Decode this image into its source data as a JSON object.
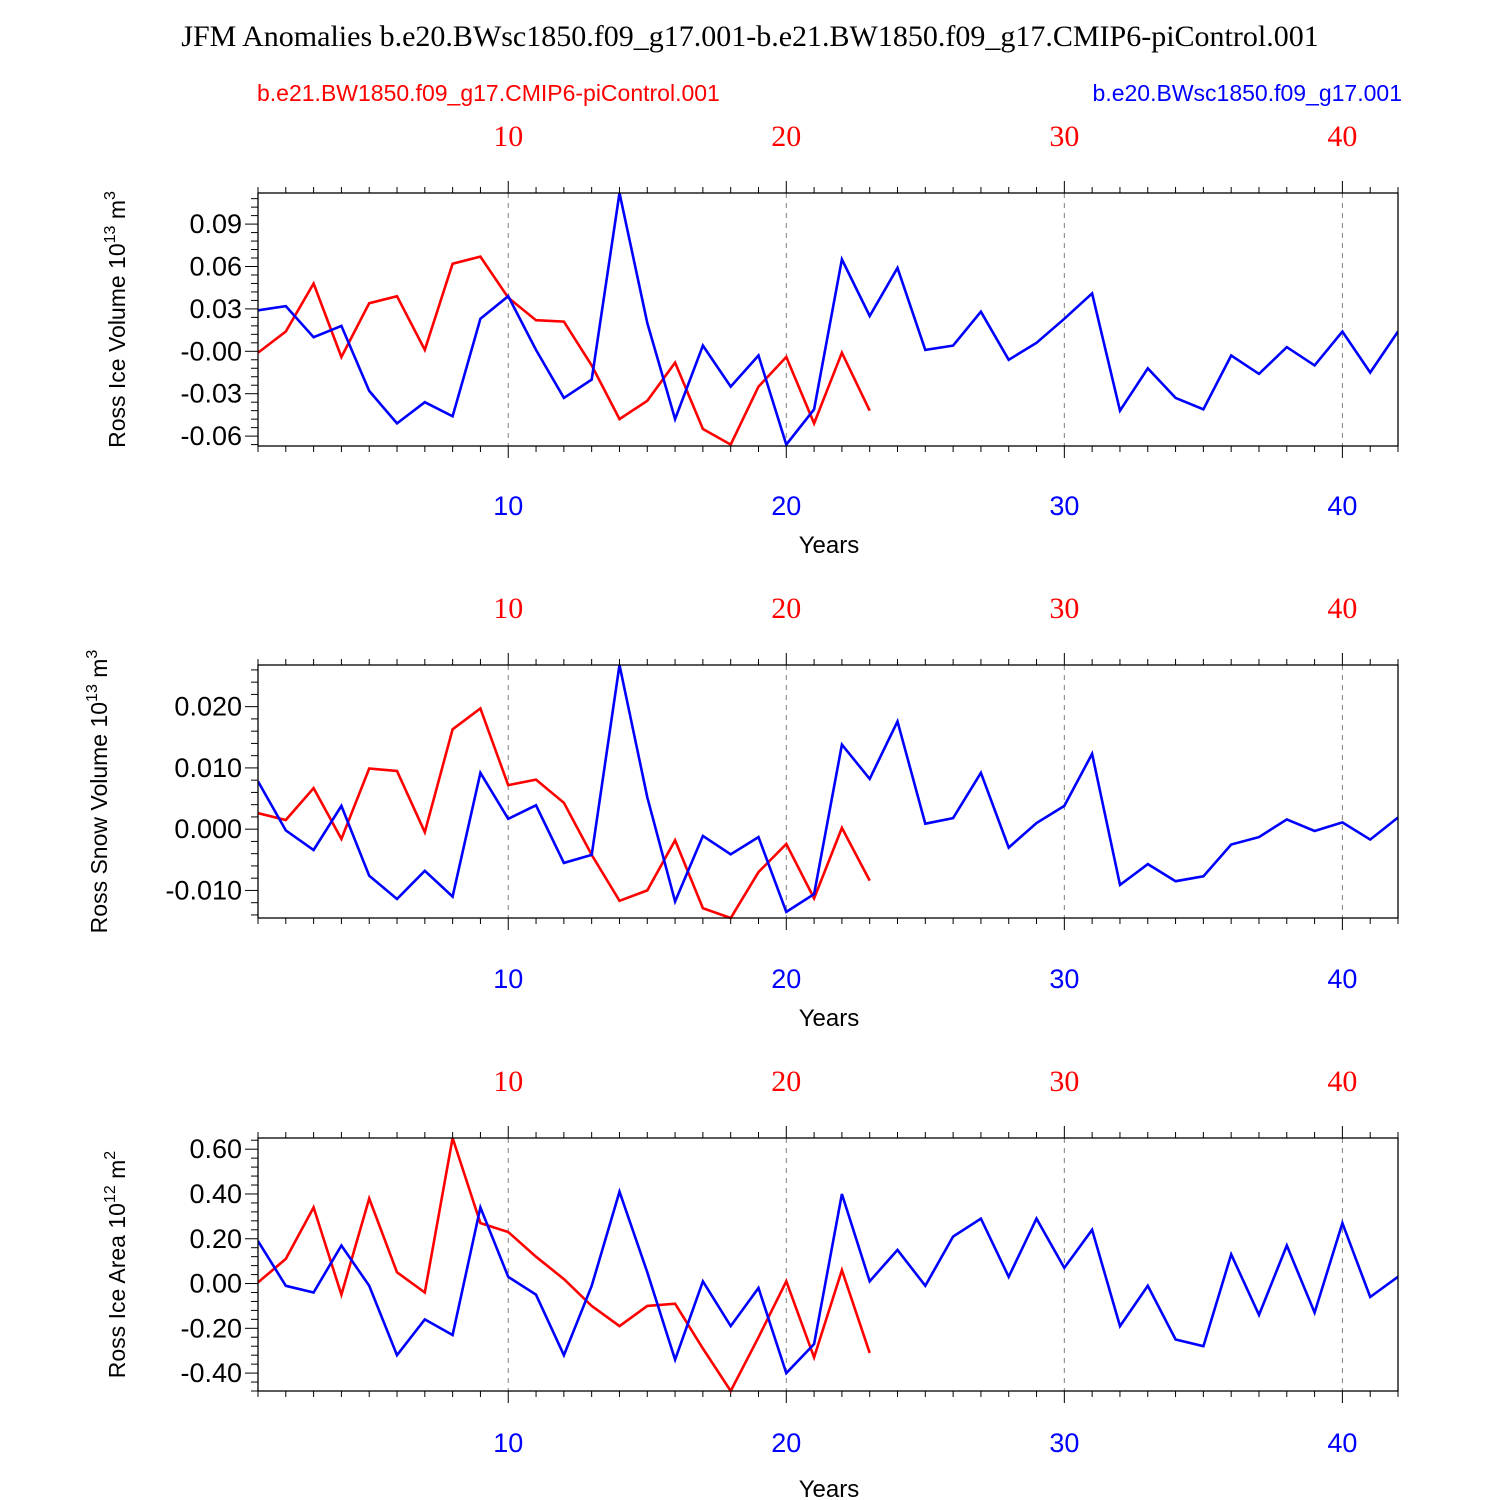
{
  "title": "JFM Anomalies b.e20.BWsc1850.f09_g17.001-b.e21.BW1850.f09_g17.CMIP6-piControl.001",
  "legend": {
    "left": "b.e21.BW1850.f09_g17.CMIP6-piControl.001",
    "right": "b.e20.BWsc1850.f09_g17.001"
  },
  "colors": {
    "red": "#ff0000",
    "blue": "#0000ff",
    "axis": "#000000",
    "grid": "#808080"
  },
  "chart_data": [
    {
      "type": "line",
      "title": "",
      "ylabel_main": "Ross Ice Volume 10",
      "ylabel_sup": "13",
      "ylabel_unit": " m",
      "ylabel_unit_sup": "3",
      "xlabel": "Years",
      "xlim": [
        1,
        42
      ],
      "ylim": [
        -0.067,
        0.112
      ],
      "yticks": [
        -0.06,
        -0.03,
        0.0,
        0.03,
        0.06,
        0.09
      ],
      "ytick_labels": [
        "-0.06",
        "-0.03",
        "-0.00",
        "0.03",
        "0.06",
        "0.09"
      ],
      "xticks": [
        10,
        20,
        30,
        40
      ],
      "xtick_labels": [
        "10",
        "20",
        "30",
        "40"
      ],
      "series": [
        {
          "name": "b.e21.BW1850.f09_g17.CMIP6-piControl.001",
          "color": "red",
          "x": [
            1,
            2,
            3,
            4,
            5,
            6,
            7,
            8,
            9,
            10,
            11,
            12,
            13,
            14,
            15,
            16,
            17,
            18,
            19,
            20,
            21,
            22,
            23
          ],
          "values": [
            -0.001,
            0.014,
            0.048,
            -0.004,
            0.034,
            0.039,
            0.001,
            0.062,
            0.067,
            0.038,
            0.022,
            0.021,
            -0.01,
            -0.048,
            -0.035,
            -0.008,
            -0.055,
            -0.066,
            -0.025,
            -0.004,
            -0.051,
            -0.001,
            -0.042
          ]
        },
        {
          "name": "b.e20.BWsc1850.f09_g17.001",
          "color": "blue",
          "x": [
            1,
            2,
            3,
            4,
            5,
            6,
            7,
            8,
            9,
            10,
            11,
            12,
            13,
            14,
            15,
            16,
            17,
            18,
            19,
            20,
            21,
            22,
            23,
            24,
            25,
            26,
            27,
            28,
            29,
            30,
            31,
            32,
            33,
            34,
            35,
            36,
            37,
            38,
            39,
            40,
            41,
            42
          ],
          "values": [
            0.029,
            0.032,
            0.01,
            0.018,
            -0.028,
            -0.051,
            -0.036,
            -0.046,
            0.023,
            0.039,
            0.001,
            -0.033,
            -0.02,
            0.112,
            0.02,
            -0.048,
            0.004,
            -0.025,
            -0.003,
            -0.066,
            -0.041,
            0.065,
            0.025,
            0.059,
            0.001,
            0.004,
            0.028,
            -0.006,
            0.006,
            0.023,
            0.041,
            -0.042,
            -0.012,
            -0.033,
            -0.041,
            -0.003,
            -0.016,
            0.003,
            -0.01,
            0.014,
            -0.015,
            0.014
          ]
        }
      ]
    },
    {
      "type": "line",
      "title": "",
      "ylabel_main": "Ross Snow Volume 10",
      "ylabel_sup": "13",
      "ylabel_unit": " m",
      "ylabel_unit_sup": "3",
      "xlabel": "Years",
      "xlim": [
        1,
        42
      ],
      "ylim": [
        -0.0145,
        0.0268
      ],
      "yticks": [
        -0.01,
        0.0,
        0.01,
        0.02
      ],
      "ytick_labels": [
        "-0.010",
        "0.000",
        "0.010",
        "0.020"
      ],
      "xticks": [
        10,
        20,
        30,
        40
      ],
      "xtick_labels": [
        "10",
        "20",
        "30",
        "40"
      ],
      "series": [
        {
          "name": "b.e21.BW1850.f09_g17.CMIP6-piControl.001",
          "color": "red",
          "x": [
            1,
            2,
            3,
            4,
            5,
            6,
            7,
            8,
            9,
            10,
            11,
            12,
            13,
            14,
            15,
            16,
            17,
            18,
            19,
            20,
            21,
            22,
            23
          ],
          "values": [
            0.0026,
            0.0015,
            0.0067,
            -0.0016,
            0.0099,
            0.0095,
            -0.0005,
            0.0163,
            0.0197,
            0.0072,
            0.0081,
            0.0043,
            -0.0042,
            -0.0117,
            -0.01,
            -0.0018,
            -0.0129,
            -0.0145,
            -0.007,
            -0.0024,
            -0.0113,
            0.0002,
            -0.0084
          ]
        },
        {
          "name": "b.e20.BWsc1850.f09_g17.001",
          "color": "blue",
          "x": [
            1,
            2,
            3,
            4,
            5,
            6,
            7,
            8,
            9,
            10,
            11,
            12,
            13,
            14,
            15,
            16,
            17,
            18,
            19,
            20,
            21,
            22,
            23,
            24,
            25,
            26,
            27,
            28,
            29,
            30,
            31,
            32,
            33,
            34,
            35,
            36,
            37,
            38,
            39,
            40,
            41,
            42
          ],
          "values": [
            0.0078,
            -0.0002,
            -0.0034,
            0.0038,
            -0.0076,
            -0.0114,
            -0.0068,
            -0.011,
            0.0092,
            0.0017,
            0.0039,
            -0.0055,
            -0.0042,
            0.0268,
            0.0052,
            -0.0118,
            -0.0011,
            -0.0041,
            -0.0013,
            -0.0135,
            -0.0106,
            0.0138,
            0.0082,
            0.0176,
            0.0009,
            0.0018,
            0.0092,
            -0.003,
            0.001,
            0.0038,
            0.0123,
            -0.0091,
            -0.0057,
            -0.0085,
            -0.0077,
            -0.0025,
            -0.0013,
            0.0016,
            -0.0003,
            0.0011,
            -0.0017,
            0.0019
          ]
        }
      ]
    },
    {
      "type": "line",
      "title": "",
      "ylabel_main": "Ross Ice Area 10",
      "ylabel_sup": "12",
      "ylabel_unit": " m",
      "ylabel_unit_sup": "2",
      "xlabel": "Years",
      "xlim": [
        1,
        42
      ],
      "ylim": [
        -0.48,
        0.65
      ],
      "yticks": [
        -0.4,
        -0.2,
        0.0,
        0.2,
        0.4,
        0.6
      ],
      "ytick_labels": [
        "-0.40",
        "-0.20",
        "0.00",
        "0.20",
        "0.40",
        "0.60"
      ],
      "xticks": [
        10,
        20,
        30,
        40
      ],
      "xtick_labels": [
        "10",
        "20",
        "30",
        "40"
      ],
      "series": [
        {
          "name": "b.e21.BW1850.f09_g17.CMIP6-piControl.001",
          "color": "red",
          "x": [
            1,
            2,
            3,
            4,
            5,
            6,
            7,
            8,
            9,
            10,
            11,
            12,
            13,
            14,
            15,
            16,
            17,
            18,
            19,
            20,
            21,
            22,
            23
          ],
          "values": [
            0.005,
            0.11,
            0.34,
            -0.05,
            0.38,
            0.05,
            -0.04,
            0.65,
            0.27,
            0.23,
            0.12,
            0.02,
            -0.1,
            -0.19,
            -0.1,
            -0.09,
            -0.29,
            -0.48,
            -0.24,
            0.01,
            -0.33,
            0.06,
            -0.31
          ]
        },
        {
          "name": "b.e20.BWsc1850.f09_g17.001",
          "color": "blue",
          "x": [
            1,
            2,
            3,
            4,
            5,
            6,
            7,
            8,
            9,
            10,
            11,
            12,
            13,
            14,
            15,
            16,
            17,
            18,
            19,
            20,
            21,
            22,
            23,
            24,
            25,
            26,
            27,
            28,
            29,
            30,
            31,
            32,
            33,
            34,
            35,
            36,
            37,
            38,
            39,
            40,
            41,
            42
          ],
          "values": [
            0.19,
            -0.01,
            -0.04,
            0.17,
            -0.01,
            -0.32,
            -0.16,
            -0.23,
            0.34,
            0.03,
            -0.05,
            -0.32,
            -0.01,
            0.41,
            0.05,
            -0.34,
            0.01,
            -0.19,
            -0.02,
            -0.4,
            -0.27,
            0.4,
            0.01,
            0.15,
            -0.01,
            0.21,
            0.29,
            0.03,
            0.29,
            0.07,
            0.24,
            -0.19,
            -0.01,
            -0.25,
            -0.28,
            0.13,
            -0.14,
            0.17,
            -0.13,
            0.27,
            -0.06,
            0.03
          ]
        }
      ]
    }
  ]
}
